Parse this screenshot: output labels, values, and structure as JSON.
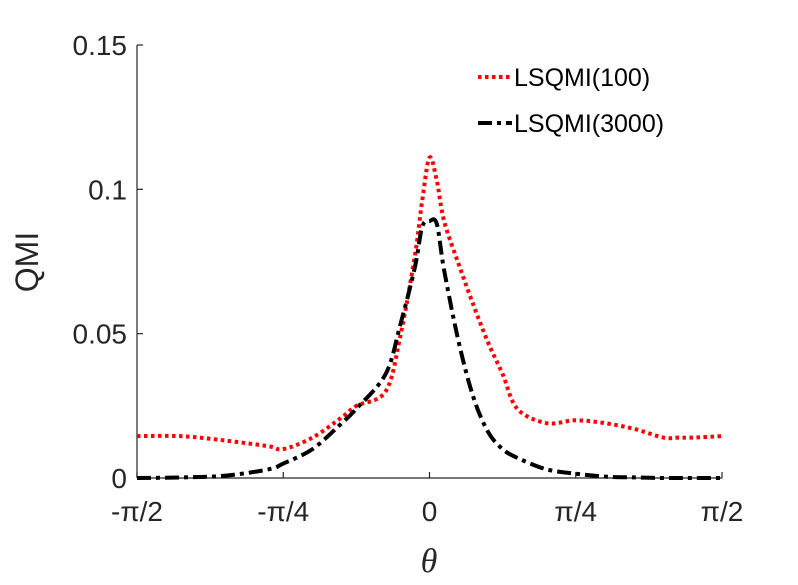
{
  "chart_data": {
    "type": "line",
    "title": "",
    "xlabel": "θ",
    "ylabel": "QMI",
    "xlim": [
      -1.5708,
      1.5708
    ],
    "ylim": [
      0,
      0.15
    ],
    "grid": false,
    "legend_position": "top-right",
    "x_ticks": [
      {
        "value": -1.5708,
        "label": "-π/2"
      },
      {
        "value": -0.7854,
        "label": "-π/4"
      },
      {
        "value": 0,
        "label": "0"
      },
      {
        "value": 0.7854,
        "label": "π/4"
      },
      {
        "value": 1.5708,
        "label": "π/2"
      }
    ],
    "y_ticks": [
      {
        "value": 0,
        "label": "0"
      },
      {
        "value": 0.05,
        "label": "0.05"
      },
      {
        "value": 0.1,
        "label": "0.1"
      },
      {
        "value": 0.15,
        "label": "0.15"
      }
    ],
    "x": [
      -1.5708,
      -1.3352,
      -1.0996,
      -0.8639,
      -0.7854,
      -0.6283,
      -0.4712,
      -0.3927,
      -0.2356,
      -0.1571,
      -0.0785,
      -0.0393,
      0,
      0.0393,
      0.0785,
      0.1571,
      0.2356,
      0.3142,
      0.3927,
      0.4712,
      0.6283,
      0.7854,
      0.9425,
      1.0996,
      1.2566,
      1.3352,
      1.4137,
      1.5708
    ],
    "series": [
      {
        "name": "LSQMI(100)",
        "color": "#ff0000",
        "style": "dotted",
        "values": [
          0.0145,
          0.0145,
          0.013,
          0.011,
          0.01,
          0.014,
          0.021,
          0.025,
          0.03,
          0.049,
          0.077,
          0.096,
          0.111,
          0.103,
          0.089,
          0.074,
          0.06,
          0.047,
          0.036,
          0.024,
          0.019,
          0.02,
          0.019,
          0.017,
          0.014,
          0.014,
          0.014,
          0.0145
        ]
      },
      {
        "name": "LSQMI(3000)",
        "color": "#000000",
        "style": "dashdot",
        "values": [
          0.0,
          0.0002,
          0.0008,
          0.003,
          0.005,
          0.01,
          0.019,
          0.024,
          0.036,
          0.053,
          0.073,
          0.087,
          0.089,
          0.088,
          0.072,
          0.047,
          0.028,
          0.016,
          0.01,
          0.007,
          0.003,
          0.0015,
          0.0005,
          0.0002,
          0.0,
          0.0,
          0.0,
          0.0
        ]
      }
    ]
  }
}
